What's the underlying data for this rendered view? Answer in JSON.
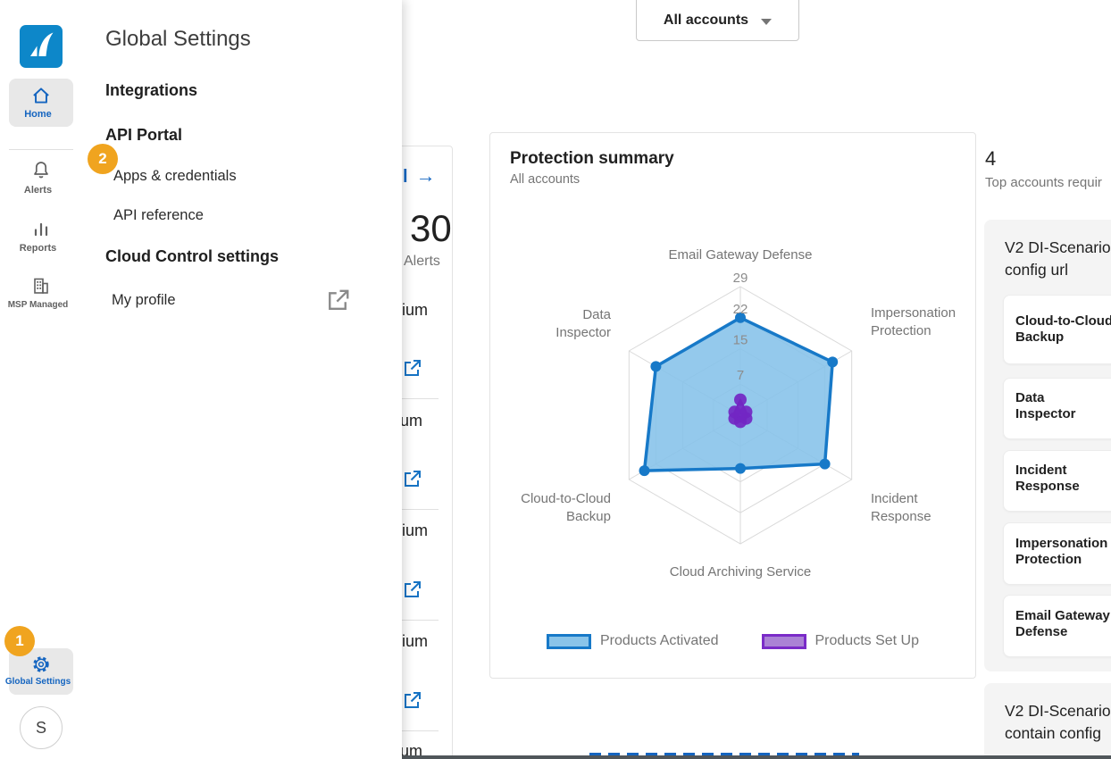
{
  "topbar": {
    "account_selector": "All accounts"
  },
  "sidebar": {
    "items": [
      {
        "label": "Home",
        "icon": "home-icon",
        "selected": true
      },
      {
        "label": "Alerts",
        "icon": "bell-icon",
        "selected": false
      },
      {
        "label": "Reports",
        "icon": "bar-chart-icon",
        "selected": false
      },
      {
        "label": "MSP Managed",
        "icon": "building-icon",
        "selected": false
      }
    ],
    "global_settings_label": "Global Settings",
    "avatar_letter": "S",
    "step_badge": "1"
  },
  "flyout": {
    "title": "Global Settings",
    "step_badge": "2",
    "integrations_heading": "Integrations",
    "api_portal_heading": "API Portal",
    "apps_credentials": "Apps & credentials",
    "api_reference": "API reference",
    "cloud_control_heading": "Cloud Control settings",
    "my_profile": "My profile"
  },
  "alerts_card": {
    "link_fragment": "l",
    "link_arrow": "→",
    "stat_value": "30",
    "stat_label": "Alerts",
    "rows": [
      {
        "severity": "Medium"
      },
      {
        "severity": "Medium"
      },
      {
        "severity": "Medium"
      },
      {
        "severity": "Medium"
      },
      {
        "severity": "Medium"
      }
    ]
  },
  "protection_card": {
    "title": "Protection summary",
    "subtitle": "All accounts"
  },
  "chart_data": {
    "type": "radar",
    "title": "Protection summary",
    "subtitle": "All accounts",
    "categories": [
      "Email Gateway Defense",
      "Impersonation Protection",
      "Incident Response",
      "Cloud Archiving Service",
      "Cloud-to-Cloud Backup",
      "Data Inspector"
    ],
    "ticks": [
      7,
      15,
      22,
      29
    ],
    "max": 29,
    "grid": true,
    "legend_position": "bottom",
    "series": [
      {
        "name": "Products Activated",
        "values": [
          22,
          24,
          22,
          12,
          25,
          22
        ],
        "fill": "#85c1e9",
        "stroke": "#1779c8"
      },
      {
        "name": "Products Set Up",
        "values": [
          3.5,
          1.5,
          1.5,
          1.5,
          1.5,
          1.5
        ],
        "fill": "#7226c3",
        "stroke": "#7226c3"
      }
    ],
    "legend": [
      {
        "label": "Products Activated",
        "swatch_fill": "#8ac4e9",
        "swatch_border": "#1779c8"
      },
      {
        "label": "Products Set Up",
        "swatch_fill": "#ab82d5",
        "swatch_border": "#7a2bc8"
      }
    ]
  },
  "right_panel": {
    "stat_value": "4",
    "stat_label": "Top accounts requir",
    "groups": [
      {
        "title_lines": [
          "V2 DI-Scenario",
          "config url"
        ],
        "products": [
          {
            "line1": "Cloud-to-Cloud",
            "line2": "Backup"
          },
          {
            "line1": "Data",
            "line2": "Inspector"
          },
          {
            "line1": "Incident",
            "line2": "Response"
          },
          {
            "line1": "Impersonation",
            "line2": "Protection"
          },
          {
            "line1": "Email Gateway",
            "line2": "Defense"
          }
        ]
      },
      {
        "title_lines": [
          "V2 DI-Scenario",
          "contain config"
        ],
        "products": []
      }
    ]
  },
  "colors": {
    "accent_blue": "#1565c0",
    "link_blue": "#1673c4",
    "badge_orange": "#f0a41f"
  }
}
